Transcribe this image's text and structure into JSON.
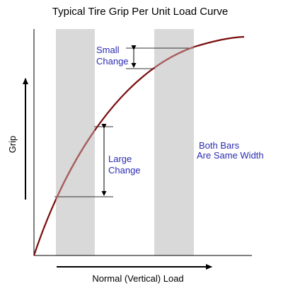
{
  "title": "Typical Tire Grip Per Unit Load Curve",
  "xlabel": "Normal (Vertical) Load",
  "ylabel": "Grip",
  "annotations": {
    "small_change": [
      "Small",
      "Change"
    ],
    "large_change": [
      "Large",
      "Change"
    ],
    "bars_note": [
      "Both Bars",
      "Are Same Width"
    ]
  },
  "colors": {
    "curve_dark": "#7a0d0d",
    "curve_highlight": "#a86060",
    "bar_fill": "#d9d9d9",
    "annotation_text": "#2b2bb3",
    "axis": "#000000",
    "guide_line": "#333333"
  }
}
